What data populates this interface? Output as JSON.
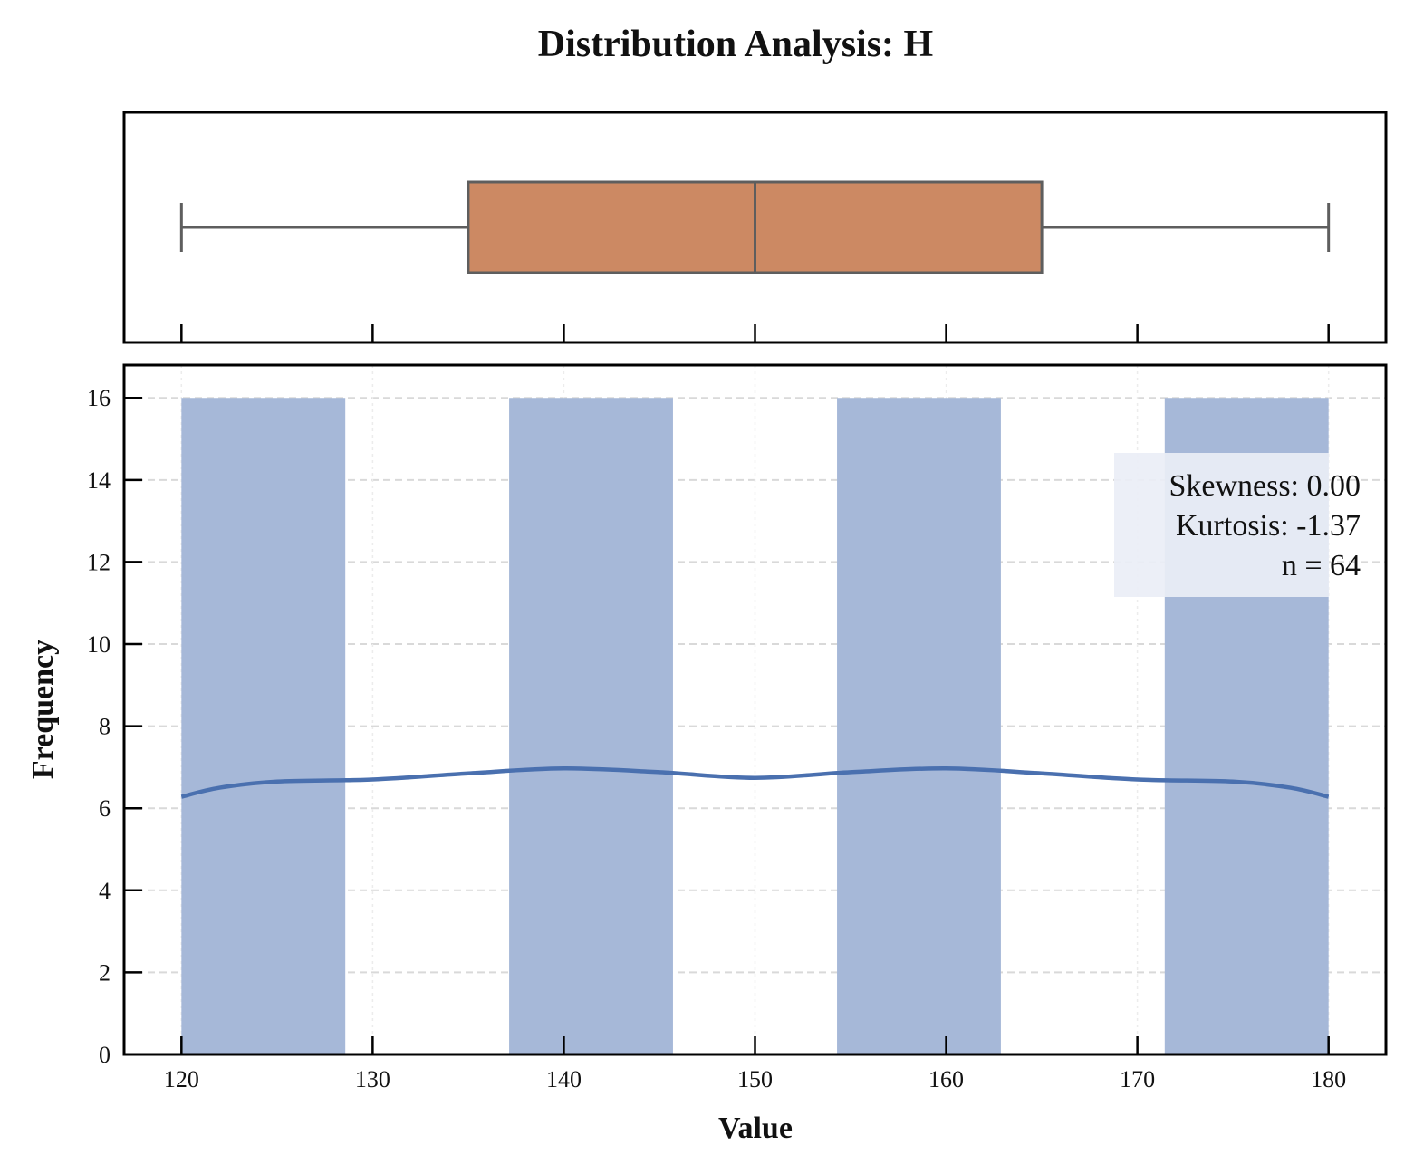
{
  "chart_data": [
    {
      "type": "boxplot",
      "title": "Distribution Analysis: H",
      "min": 120,
      "q1": 135,
      "median": 150,
      "q3": 165,
      "max": 180,
      "xlim": [
        117,
        183
      ],
      "colors": {
        "box_fill": "#CC8963",
        "box_edge": "#5e5e5e"
      }
    },
    {
      "type": "bar",
      "xlabel": "Value",
      "ylabel": "Frequency",
      "xlim": [
        117,
        183
      ],
      "ylim": [
        0,
        16.8
      ],
      "x_ticks": [
        120,
        130,
        140,
        150,
        160,
        170,
        180
      ],
      "y_ticks": [
        0,
        2,
        4,
        6,
        8,
        10,
        12,
        14,
        16
      ],
      "grid": true,
      "bins": [
        {
          "start": 120.0,
          "end": 128.57,
          "count": 16
        },
        {
          "start": 128.57,
          "end": 137.14,
          "count": 0
        },
        {
          "start": 137.14,
          "end": 145.71,
          "count": 16
        },
        {
          "start": 145.71,
          "end": 154.29,
          "count": 0
        },
        {
          "start": 154.29,
          "end": 162.86,
          "count": 16
        },
        {
          "start": 162.86,
          "end": 171.43,
          "count": 0
        },
        {
          "start": 171.43,
          "end": 180.0,
          "count": 16
        }
      ],
      "kde": {
        "x": [
          120,
          122,
          125,
          130,
          135,
          140,
          145,
          150,
          155,
          160,
          165,
          170,
          175,
          178,
          180
        ],
        "y": [
          6.28,
          6.5,
          6.65,
          6.7,
          6.85,
          6.97,
          6.88,
          6.74,
          6.88,
          6.97,
          6.85,
          6.7,
          6.65,
          6.5,
          6.28
        ]
      },
      "annotation_lines": [
        "Skewness: 0.00",
        "Kurtosis: -1.37",
        "n = 64"
      ],
      "colors": {
        "bar": "#A6B8D8",
        "kde": "#4A70AF",
        "annotation_box": "#EAEEF6"
      }
    }
  ]
}
